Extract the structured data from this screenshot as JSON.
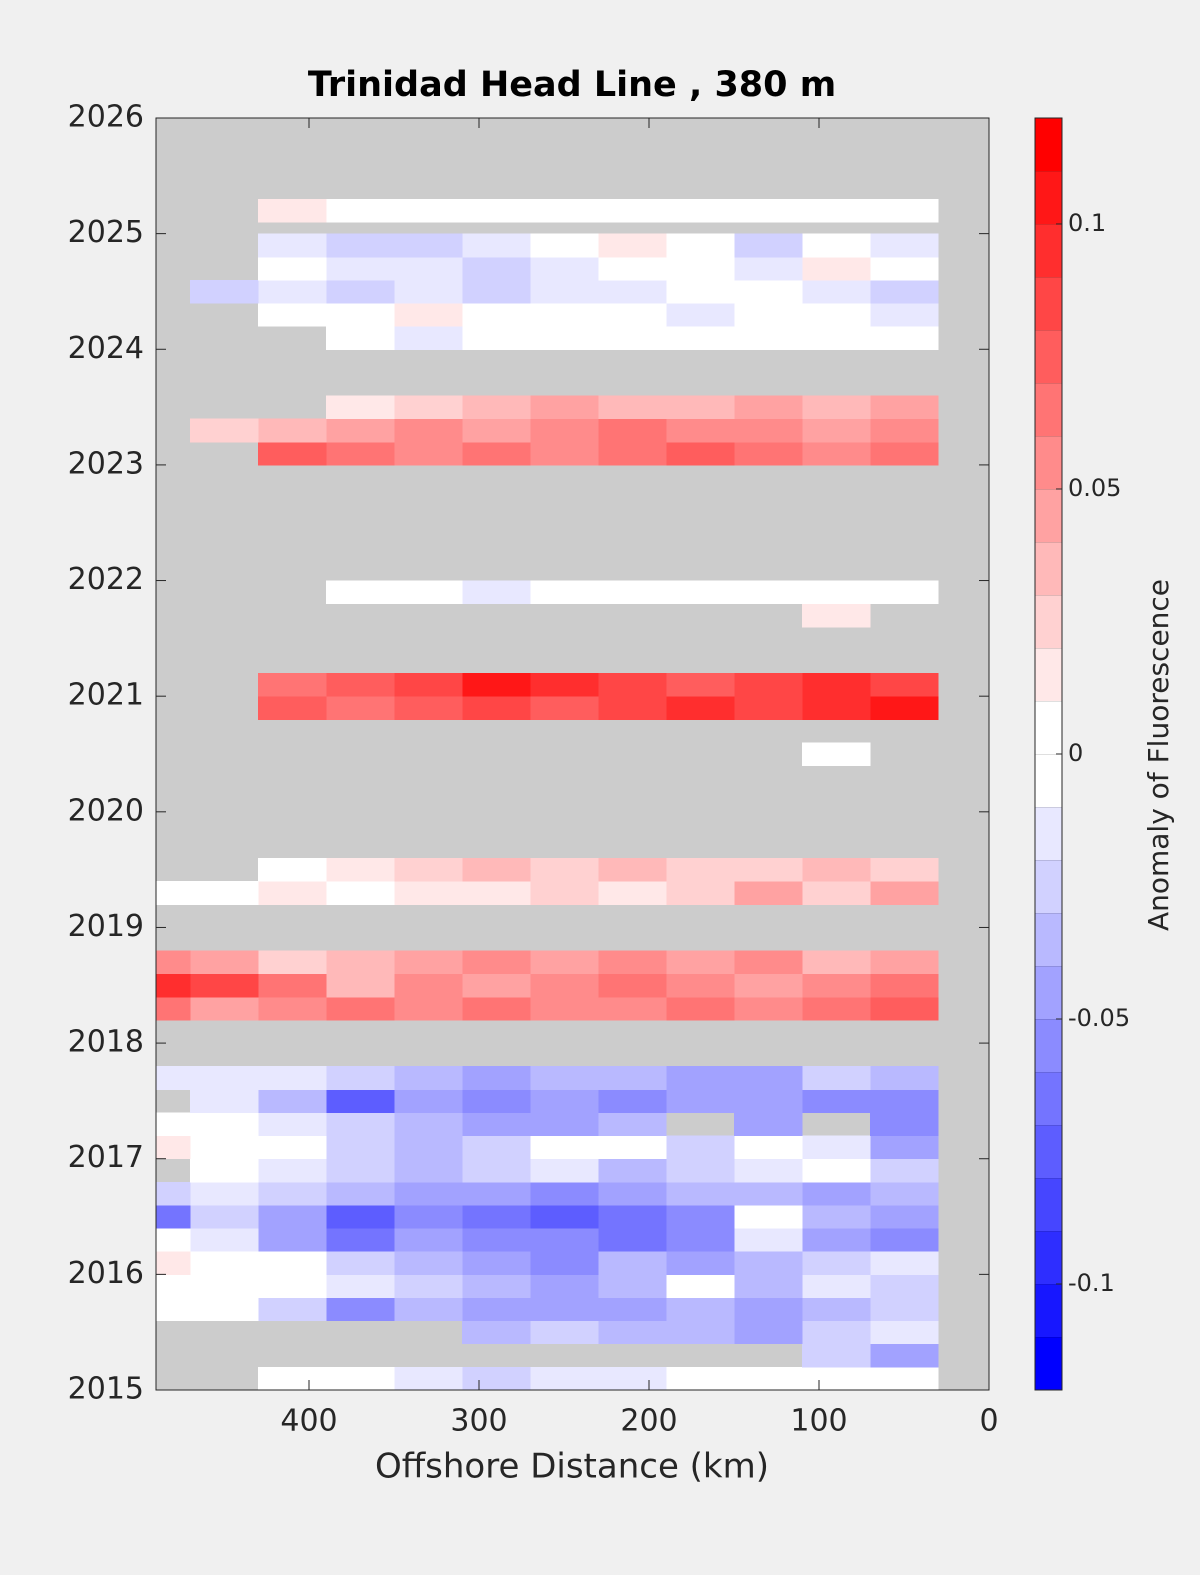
{
  "chart_data": {
    "type": "contour",
    "title": "Trinidad Head Line , 380 m",
    "xlabel": "Offshore Distance (km)",
    "clabel": "Anomaly of Fluorescence",
    "xlim": [
      490,
      0
    ],
    "xticks": [
      400,
      300,
      200,
      100,
      0
    ],
    "ylim": [
      2015,
      2026
    ],
    "yticks": [
      2015,
      2016,
      2017,
      2018,
      2019,
      2020,
      2021,
      2022,
      2023,
      2024,
      2025,
      2026
    ],
    "clim": [
      -0.12,
      0.12
    ],
    "cticks": [
      -0.1,
      -0.05,
      0,
      0.05,
      0.1
    ],
    "contour_step": 0.01,
    "missing_color": "#cccccc",
    "x": [
      50,
      90,
      130,
      170,
      210,
      250,
      290,
      330,
      370,
      410,
      450,
      490
    ],
    "y": [
      2015.1,
      2015.3,
      2015.5,
      2015.7,
      2015.9,
      2016.1,
      2016.3,
      2016.5,
      2016.7,
      2016.9,
      2017.1,
      2017.3,
      2017.5,
      2017.7,
      2018.3,
      2018.5,
      2018.7,
      2019.3,
      2019.5,
      2020.5,
      2020.9,
      2021.1,
      2021.7,
      2021.9,
      2023.1,
      2023.3,
      2023.5,
      2024.1,
      2024.3,
      2024.5,
      2024.7,
      2024.9,
      2025.2
    ],
    "z": [
      [
        -0.01,
        0,
        0,
        -0.01,
        -0.02,
        -0.02,
        -0.03,
        -0.02,
        -0.01,
        -0.01,
        null,
        null
      ],
      [
        -0.05,
        -0.03,
        null,
        null,
        null,
        null,
        null,
        null,
        null,
        null,
        null,
        null
      ],
      [
        -0.02,
        -0.03,
        -0.05,
        -0.04,
        -0.04,
        -0.03,
        -0.04,
        null,
        null,
        null,
        null,
        null
      ],
      [
        -0.03,
        -0.04,
        -0.05,
        -0.04,
        -0.05,
        -0.05,
        -0.05,
        -0.04,
        -0.06,
        -0.03,
        -0.01,
        -0.01
      ],
      [
        -0.03,
        -0.02,
        -0.04,
        -0.01,
        -0.04,
        -0.05,
        -0.04,
        -0.03,
        -0.02,
        -0.01,
        0,
        -0.01
      ],
      [
        -0.02,
        -0.03,
        -0.04,
        -0.05,
        -0.04,
        -0.06,
        -0.05,
        -0.04,
        -0.03,
        -0.01,
        0,
        0.01
      ],
      [
        -0.06,
        -0.05,
        -0.02,
        -0.06,
        -0.07,
        -0.06,
        -0.06,
        -0.05,
        -0.07,
        -0.05,
        -0.02,
        0
      ],
      [
        -0.05,
        -0.04,
        -0.01,
        -0.06,
        -0.07,
        -0.08,
        -0.07,
        -0.06,
        -0.08,
        -0.05,
        -0.03,
        -0.07
      ],
      [
        -0.04,
        -0.05,
        -0.04,
        -0.04,
        -0.05,
        -0.06,
        -0.05,
        -0.05,
        -0.04,
        -0.03,
        -0.02,
        -0.03
      ],
      [
        -0.03,
        -0.01,
        -0.02,
        -0.03,
        -0.04,
        -0.02,
        -0.03,
        -0.04,
        -0.03,
        -0.02,
        -0.01,
        null
      ],
      [
        -0.05,
        -0.02,
        0,
        -0.03,
        -0.01,
        0,
        -0.03,
        -0.04,
        -0.03,
        -0.01,
        0,
        0.01
      ],
      [
        -0.06,
        null,
        -0.05,
        null,
        -0.04,
        -0.05,
        -0.05,
        -0.04,
        -0.03,
        -0.02,
        0,
        -0.01
      ],
      [
        -0.06,
        -0.06,
        -0.05,
        -0.05,
        -0.06,
        -0.05,
        -0.06,
        -0.05,
        -0.08,
        -0.04,
        -0.02,
        null
      ],
      [
        -0.04,
        -0.03,
        -0.05,
        -0.05,
        -0.04,
        -0.04,
        -0.05,
        -0.04,
        -0.03,
        -0.02,
        -0.02,
        -0.02
      ],
      [
        0.07,
        0.06,
        0.05,
        0.06,
        0.05,
        0.05,
        0.06,
        0.05,
        0.06,
        0.05,
        0.04,
        0.06
      ],
      [
        0.06,
        0.05,
        0.04,
        0.05,
        0.06,
        0.05,
        0.04,
        0.05,
        0.03,
        0.06,
        0.08,
        0.09
      ],
      [
        0.04,
        0.03,
        0.05,
        0.04,
        0.05,
        0.04,
        0.05,
        0.04,
        0.03,
        0.02,
        0.04,
        0.05
      ],
      [
        0.04,
        0.02,
        0.04,
        0.02,
        0.01,
        0.02,
        0.01,
        0.01,
        0,
        0.01,
        0,
        0
      ],
      [
        0.02,
        0.03,
        0.02,
        0.02,
        0.03,
        0.02,
        0.03,
        0.02,
        0.01,
        0,
        null,
        null
      ],
      [
        null,
        -0.01,
        null,
        null,
        null,
        null,
        null,
        null,
        null,
        null,
        null,
        null
      ],
      [
        0.1,
        0.09,
        0.08,
        0.09,
        0.08,
        0.07,
        0.08,
        0.07,
        0.06,
        0.07,
        null,
        null
      ],
      [
        0.08,
        0.09,
        0.08,
        0.07,
        0.08,
        0.09,
        0.1,
        0.08,
        0.07,
        0.06,
        null,
        null
      ],
      [
        null,
        0.01,
        null,
        null,
        null,
        null,
        null,
        null,
        null,
        null,
        null,
        null
      ],
      [
        0,
        -0.01,
        -0.01,
        0,
        -0.01,
        -0.01,
        -0.02,
        -0.01,
        -0.01,
        null,
        null,
        null
      ],
      [
        0.06,
        0.05,
        0.06,
        0.07,
        0.06,
        0.05,
        0.06,
        0.05,
        0.06,
        0.07,
        null,
        null
      ],
      [
        0.05,
        0.04,
        0.05,
        0.05,
        0.06,
        0.05,
        0.04,
        0.05,
        0.04,
        0.03,
        0.02,
        null
      ],
      [
        0.04,
        0.03,
        0.04,
        0.03,
        0.03,
        0.04,
        0.03,
        0.02,
        0.01,
        null,
        null,
        null
      ],
      [
        -0.01,
        0,
        -0.01,
        0,
        0,
        0,
        -0.01,
        -0.02,
        -0.01,
        null,
        null,
        null
      ],
      [
        -0.02,
        -0.01,
        0,
        -0.02,
        0,
        -0.01,
        0,
        0.01,
        0,
        -0.01,
        null,
        null
      ],
      [
        -0.03,
        -0.02,
        -0.01,
        -0.01,
        -0.02,
        -0.02,
        -0.03,
        -0.02,
        -0.03,
        -0.02,
        -0.03,
        null
      ],
      [
        -0.01,
        0.01,
        -0.02,
        0,
        0,
        -0.02,
        -0.03,
        -0.02,
        -0.02,
        -0.01,
        null,
        null
      ],
      [
        -0.02,
        -0.01,
        -0.03,
        0,
        0.01,
        -0.01,
        -0.02,
        -0.03,
        -0.03,
        -0.02,
        null,
        null
      ],
      [
        -0.01,
        0,
        0,
        0,
        -0.01,
        -0.01,
        0,
        0,
        0,
        0.01,
        null,
        null
      ]
    ]
  }
}
